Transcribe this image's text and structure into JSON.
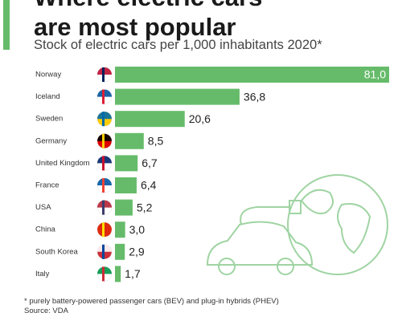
{
  "chart_data": {
    "type": "bar",
    "orientation": "horizontal",
    "title": "Where electric cars are most popular",
    "subtitle": "Stock of electric cars per 1,000 inhabitants 2020*",
    "categories": [
      "Norway",
      "Iceland",
      "Sweden",
      "Germany",
      "United Kingdom",
      "France",
      "USA",
      "China",
      "South Korea",
      "Italy"
    ],
    "values": [
      81.0,
      36.8,
      20.6,
      8.5,
      6.7,
      6.4,
      5.2,
      3.0,
      2.9,
      1.7
    ],
    "value_labels": [
      "81,0",
      "36,8",
      "20,6",
      "8,5",
      "6,7",
      "6,4",
      "5,2",
      "3,0",
      "2,9",
      "1,7"
    ],
    "color": "#66bb6a",
    "footnote": "* purely battery-powered passenger cars (BEV) and plug-in hybrids (PHEV)",
    "source": "Source: VDA"
  }
}
